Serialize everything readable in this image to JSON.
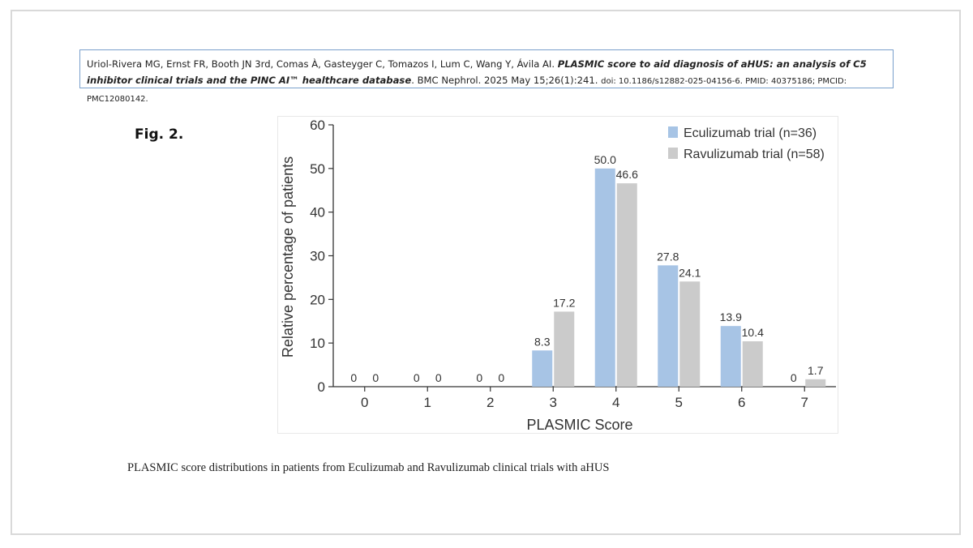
{
  "citation": {
    "authors": "Uriol-Rivera MG, Ernst FR, Booth JN 3rd, Comas À, Gasteyger C, Tomazos I, Lum C, Wang Y, Ávila AI.",
    "title": "PLASMIC score to aid diagnosis of aHUS: an analysis of C5 inhibitor clinical trials and the PINC AI™ healthcare database",
    "journal": "BMC Nephrol. 2025 May 15;26(1):241.",
    "ids": "doi: 10.1186/s12882-025-04156-6. PMID: 40375186; PMCID: PMC12080142."
  },
  "figure_label": "Fig. 2.",
  "caption": "PLASMIC score distributions in patients from Eculizumab and Ravulizumab clinical trials with aHUS",
  "chart_data": {
    "type": "bar",
    "title": "",
    "xlabel": "PLASMIC Score",
    "ylabel": "Relative percentage of patients",
    "categories": [
      "0",
      "1",
      "2",
      "3",
      "4",
      "5",
      "6",
      "7"
    ],
    "ylim": [
      0,
      60
    ],
    "yticks": [
      "0",
      "10",
      "20",
      "30",
      "40",
      "50",
      "60"
    ],
    "grid": false,
    "legend_position": "top-right",
    "series": [
      {
        "name": "Eculizumab trial (n=36)",
        "color": "#a7c4e5",
        "values": [
          0,
          0,
          0,
          8.3,
          50.0,
          27.8,
          13.9,
          0
        ],
        "labels": [
          "0",
          "0",
          "0",
          "8.3",
          "50.0",
          "27.8",
          "13.9",
          "0"
        ]
      },
      {
        "name": "Ravulizumab trial (n=58)",
        "color": "#cbcbcb",
        "values": [
          0,
          0,
          0,
          17.2,
          46.6,
          24.1,
          10.4,
          1.7
        ],
        "labels": [
          "0",
          "0",
          "0",
          "17.2",
          "46.6",
          "24.1",
          "10.4",
          "1.7"
        ]
      }
    ]
  }
}
